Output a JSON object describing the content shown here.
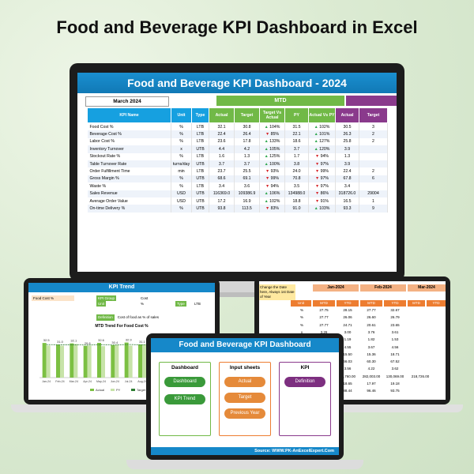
{
  "page_title": "Food and Beverage KPI Dashboard in Excel",
  "main_dashboard": {
    "title": "Food and Beverage KPI Dashboard - 2024",
    "month": "March 2024",
    "mtd_label": "MTD",
    "columns": [
      "KPI Name",
      "Unit",
      "Type",
      "Actual",
      "Target",
      "Target Vs Actual",
      "PY",
      "Actual Vs PY",
      "Actual",
      "Target"
    ],
    "rows": [
      {
        "kpi": "Food Cost %",
        "unit": "%",
        "type": "LTB",
        "actual": "32.1",
        "target": "30.8",
        "tva_dir": "up",
        "tva": "104%",
        "py": "31.5",
        "avp_dir": "up",
        "avp": "102%",
        "ytd_actual": "30.5",
        "ytd_target": "3"
      },
      {
        "kpi": "Beverage Cost %",
        "unit": "%",
        "type": "LTB",
        "actual": "22.4",
        "target": "26.4",
        "tva_dir": "down",
        "tva": "85%",
        "py": "22.1",
        "avp_dir": "up",
        "avp": "101%",
        "ytd_actual": "26.3",
        "ytd_target": "2"
      },
      {
        "kpi": "Labor Cost %",
        "unit": "%",
        "type": "LTB",
        "actual": "23.6",
        "target": "17.8",
        "tva_dir": "up",
        "tva": "133%",
        "py": "18.6",
        "avp_dir": "up",
        "avp": "127%",
        "ytd_actual": "25.8",
        "ytd_target": "2"
      },
      {
        "kpi": "Inventory Turnover",
        "unit": "x",
        "type": "UTB",
        "actual": "4.4",
        "target": "4.2",
        "tva_dir": "up",
        "tva": "105%",
        "py": "3.7",
        "avp_dir": "up",
        "avp": "120%",
        "ytd_actual": "3.9",
        "ytd_target": ""
      },
      {
        "kpi": "Stockout Rate %",
        "unit": "%",
        "type": "LTB",
        "actual": "1.6",
        "target": "1.3",
        "tva_dir": "up",
        "tva": "125%",
        "py": "1.7",
        "avp_dir": "down",
        "avp": "94%",
        "ytd_actual": "1.3",
        "ytd_target": ""
      },
      {
        "kpi": "Table Turnover Rate",
        "unit": "turns/day",
        "type": "UTB",
        "actual": "3.7",
        "target": "3.7",
        "tva_dir": "up",
        "tva": "100%",
        "py": "3.8",
        "avp_dir": "down",
        "avp": "97%",
        "ytd_actual": "3.9",
        "ytd_target": ""
      },
      {
        "kpi": "Order Fulfillment Time",
        "unit": "min",
        "type": "LTB",
        "actual": "23.7",
        "target": "25.5",
        "tva_dir": "down",
        "tva": "93%",
        "py": "24.0",
        "avp_dir": "down",
        "avp": "99%",
        "ytd_actual": "22.4",
        "ytd_target": "2"
      },
      {
        "kpi": "Gross Margin %",
        "unit": "%",
        "type": "UTB",
        "actual": "68.6",
        "target": "69.1",
        "tva_dir": "down",
        "tva": "99%",
        "py": "70.8",
        "avp_dir": "down",
        "avp": "97%",
        "ytd_actual": "67.8",
        "ytd_target": "6"
      },
      {
        "kpi": "Waste %",
        "unit": "%",
        "type": "LTB",
        "actual": "3.4",
        "target": "3.6",
        "tva_dir": "down",
        "tva": "94%",
        "py": "3.5",
        "avp_dir": "down",
        "avp": "97%",
        "ytd_actual": "3.4",
        "ytd_target": ""
      },
      {
        "kpi": "Sales Revenue",
        "unit": "USD",
        "type": "UTB",
        "actual": "116369.0",
        "target": "109386.9",
        "tva_dir": "up",
        "tva": "106%",
        "py": "134988.0",
        "avp_dir": "down",
        "avp": "86%",
        "ytd_actual": "318726.0",
        "ytd_target": "29004"
      },
      {
        "kpi": "Average Order Value",
        "unit": "USD",
        "type": "UTB",
        "actual": "17.2",
        "target": "16.9",
        "tva_dir": "up",
        "tva": "102%",
        "py": "18.8",
        "avp_dir": "down",
        "avp": "91%",
        "ytd_actual": "16.5",
        "ytd_target": "1"
      },
      {
        "kpi": "On-time Delivery %",
        "unit": "%",
        "type": "UTB",
        "actual": "93.8",
        "target": "113.5",
        "tva_dir": "down",
        "tva": "83%",
        "py": "91.0",
        "avp_dir": "up",
        "avp": "103%",
        "ytd_actual": "93.3",
        "ytd_target": "9"
      }
    ]
  },
  "trend_screen": {
    "title": "KPI Trend",
    "kpi_selected": "Food Cost %",
    "kpi_group_label": "KPI Group",
    "kpi_group_value": "Cost",
    "unit_label": "Unit",
    "unit_value": "%",
    "type_label": "Type",
    "type_value": "LTB",
    "definition_label": "Definition",
    "definition_value": "Cost of food as % of sales",
    "chart_title": "MTD Trend For Food Cost %",
    "legend_actual": "Actual",
    "legend_target": "Target",
    "legend_py": "PY"
  },
  "chart_data": {
    "type": "bar",
    "title": "MTD Trend For Food Cost %",
    "categories": [
      "Jan-24",
      "Feb-24",
      "Mar-24",
      "Apr-24",
      "May-24",
      "Jun-24",
      "Jul-24",
      "Aug-24",
      "Sep-24",
      "Oct-24",
      "Nov-24",
      "Dec-24"
    ],
    "series": [
      {
        "name": "Actual",
        "values": [
          32.5,
          31.0,
          32.1,
          29.8,
          32.6,
          30.4,
          32.9,
          31.1,
          33.0,
          30.2,
          31.7,
          30.9
        ]
      },
      {
        "name": "PY",
        "values": [
          30.1,
          29.9,
          31.5,
          30.0,
          29.5,
          30.9,
          30.0,
          31.2,
          29.8,
          30.6,
          29.9,
          30.7
        ]
      },
      {
        "name": "Target",
        "values": [
          31.0,
          30.8,
          30.8,
          30.5,
          30.9,
          30.6,
          31.1,
          30.7,
          30.9,
          30.4,
          30.8,
          30.6
        ]
      }
    ],
    "data_labels": [
      "32.5",
      "31.0",
      "32.1",
      "29.8",
      "32.6",
      "30.4",
      "32.9",
      "31.1",
      "33.0",
      "30.2",
      "31.7",
      "30.9"
    ],
    "legend": "bottom"
  },
  "input_screen": {
    "tip": "Change the Date here, Always 1st Date of Year",
    "months": [
      "Jan-2024",
      "Feb-2024",
      "Mar-2024"
    ],
    "unit_label": "Unit",
    "mtd": "MTD",
    "ytd": "YTD",
    "rows": [
      [
        "%",
        "27.75",
        "28.15",
        "27.77",
        "32.67"
      ],
      [
        "%",
        "27.77",
        "26.06",
        "26.60",
        "26.79"
      ],
      [
        "%",
        "27.77",
        "24.71",
        "20.61",
        "23.65"
      ],
      [
        "x",
        "3.26",
        "3.00",
        "3.76",
        "3.61"
      ],
      [
        "%",
        "1.31",
        "1.19",
        "1.82",
        "1.53"
      ],
      [
        "",
        "4.66",
        "4.55",
        "3.67",
        "4.56"
      ],
      [
        "",
        "18.50",
        "15.50",
        "15.36",
        "18.71"
      ],
      [
        "",
        "29.20",
        "66.03",
        "60.30",
        "67.52"
      ],
      [
        "",
        "4.00",
        "3.56",
        "4.22",
        "3.62"
      ],
      [
        "",
        "60,657.00",
        "63,760.00",
        "282,003.00",
        "130,069.00"
      ],
      [
        "",
        "18.09",
        "18.65",
        "17.97",
        "19.18"
      ],
      [
        "",
        "89.44",
        "88.44",
        "96.46",
        "93.75"
      ]
    ],
    "extra_col": [
      "",
      "",
      "",
      "",
      "",
      "",
      "",
      "",
      "",
      "218,726.00",
      "",
      ""
    ]
  },
  "nav_screen": {
    "title": "Food and Beverage KPI Dashboard",
    "dashboard_header": "Dashboard",
    "dashboard_btn": "Dashboard",
    "kpi_trend_btn": "KPI Trend",
    "input_header": "Input sheets",
    "actual_btn": "Actual",
    "target_btn": "Target",
    "previous_year_btn": "Previous Year",
    "kpi_header": "KPI",
    "definition_btn": "Definition",
    "source": "Source: WWW.PK-AnExcelExpert.Com"
  }
}
